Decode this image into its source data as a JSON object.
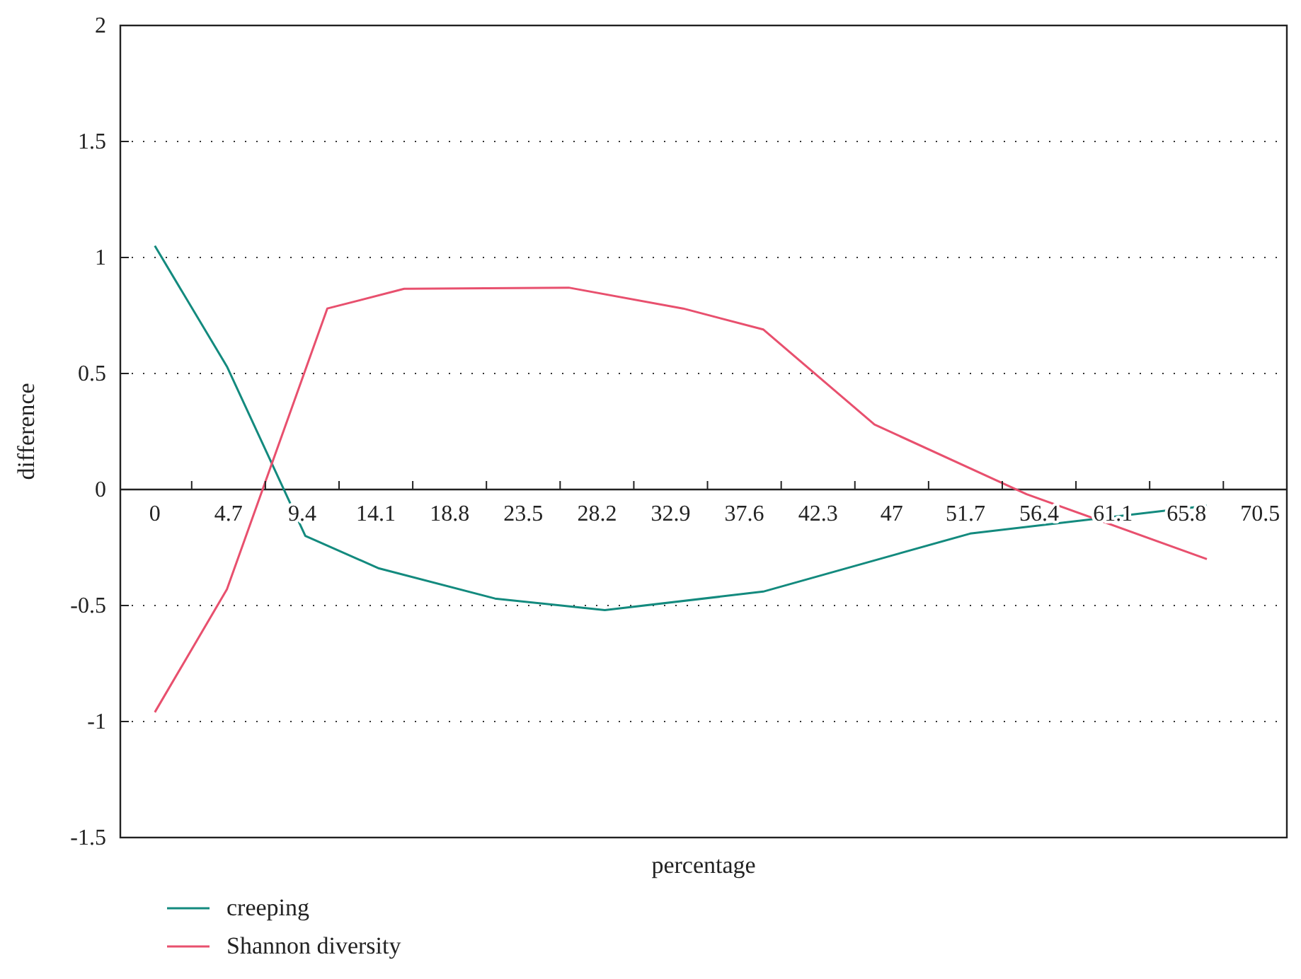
{
  "chart_data": {
    "type": "line",
    "xlabel": "percentage",
    "ylabel": "difference",
    "xlim": [
      -2.2,
      72.2
    ],
    "xticks": [
      {
        "value": 0,
        "label": "0"
      },
      {
        "value": 4.7,
        "label": "4.7"
      },
      {
        "value": 9.4,
        "label": "9.4"
      },
      {
        "value": 14.1,
        "label": "14.1"
      },
      {
        "value": 18.8,
        "label": "18.8"
      },
      {
        "value": 23.5,
        "label": "23.5"
      },
      {
        "value": 28.2,
        "label": "28.2"
      },
      {
        "value": 32.9,
        "label": "32.9"
      },
      {
        "value": 37.6,
        "label": "37.6"
      },
      {
        "value": 42.3,
        "label": "42.3"
      },
      {
        "value": 47,
        "label": "47"
      },
      {
        "value": 51.7,
        "label": "51.7"
      },
      {
        "value": 56.4,
        "label": "56.4"
      },
      {
        "value": 61.1,
        "label": "61.1"
      },
      {
        "value": 65.8,
        "label": "65.8"
      },
      {
        "value": 70.5,
        "label": "70.5"
      },
      {
        "value": 2.35,
        "label": null
      },
      {
        "value": 7.05,
        "label": null
      },
      {
        "value": 11.75,
        "label": null
      },
      {
        "value": 16.45,
        "label": null
      },
      {
        "value": 21.15,
        "label": null
      },
      {
        "value": 25.85,
        "label": null
      },
      {
        "value": 30.55,
        "label": null
      },
      {
        "value": 35.25,
        "label": null
      },
      {
        "value": 39.95,
        "label": null
      },
      {
        "value": 44.65,
        "label": null
      },
      {
        "value": 49.35,
        "label": null
      },
      {
        "value": 54.05,
        "label": null
      },
      {
        "value": 58.75,
        "label": null
      },
      {
        "value": 63.45,
        "label": null
      },
      {
        "value": 68.15,
        "label": null
      }
    ],
    "ylim": [
      -1.5,
      2
    ],
    "yticks": [
      -1.5,
      -1,
      -0.5,
      0,
      0.5,
      1,
      1.5,
      2
    ],
    "grid": "y",
    "legend": "bottom left",
    "series": [
      {
        "name": "creeping",
        "color": "#138a7e",
        "x": [
          0,
          4.6,
          9.6,
          14.3,
          21.7,
          28.7,
          38.8,
          52,
          67.1
        ],
        "values": [
          1.05,
          0.53,
          -0.2,
          -0.34,
          -0.47,
          -0.52,
          -0.44,
          -0.19,
          -0.07
        ]
      },
      {
        "name": "Shannon diversity",
        "color": "#e8506e",
        "x": [
          0,
          4.6,
          11,
          15.9,
          26.4,
          33.7,
          38.8,
          45.9,
          55.6,
          67.1
        ],
        "values": [
          -0.96,
          -0.43,
          0.78,
          0.865,
          0.87,
          0.78,
          0.69,
          0.28,
          -0.02,
          -0.3
        ]
      }
    ]
  }
}
